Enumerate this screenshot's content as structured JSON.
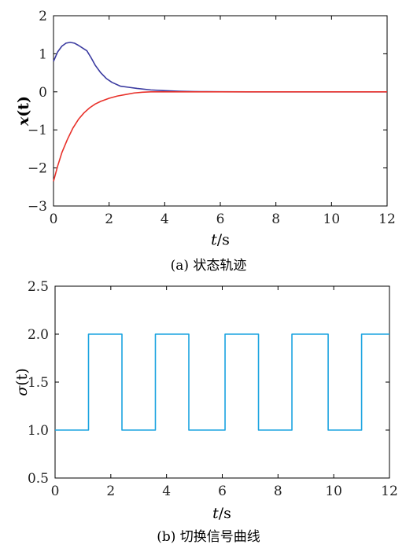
{
  "chart_data": [
    {
      "type": "line",
      "caption": "(a) 状态轨迹",
      "xlabel_var": "t",
      "xlabel_unit": "/s",
      "ylabel_var": "x",
      "ylabel_arg": "(t)",
      "xlim": [
        0,
        12
      ],
      "ylim": [
        -3,
        2
      ],
      "xticks": [
        0,
        2,
        4,
        6,
        8,
        10,
        12
      ],
      "yticks": [
        -3,
        -2,
        -1,
        0,
        1,
        2
      ],
      "grid": false,
      "series": [
        {
          "color": "#3a3aa0",
          "x": [
            0,
            0.15,
            0.3,
            0.45,
            0.6,
            0.75,
            0.9,
            1.05,
            1.2,
            1.35,
            1.5,
            1.7,
            1.9,
            2.1,
            2.4,
            2.7,
            3.0,
            3.5,
            4.0,
            4.5,
            5.0,
            5.5,
            6.0,
            7.0,
            8.0,
            10.0,
            12.0
          ],
          "y": [
            0.8,
            1.05,
            1.2,
            1.28,
            1.3,
            1.28,
            1.22,
            1.15,
            1.08,
            0.9,
            0.7,
            0.5,
            0.35,
            0.25,
            0.15,
            0.12,
            0.09,
            0.05,
            0.03,
            0.015,
            0.008,
            0.004,
            0.002,
            0,
            0,
            0,
            0
          ]
        },
        {
          "color": "#e8312a",
          "x": [
            0,
            0.15,
            0.3,
            0.5,
            0.7,
            0.9,
            1.1,
            1.3,
            1.5,
            1.7,
            2.0,
            2.3,
            2.6,
            2.9,
            3.2,
            3.5,
            4.0,
            4.5,
            5.0,
            6.0,
            8.0,
            10.0,
            12.0
          ],
          "y": [
            -2.35,
            -1.95,
            -1.6,
            -1.25,
            -0.95,
            -0.72,
            -0.55,
            -0.42,
            -0.32,
            -0.25,
            -0.17,
            -0.11,
            -0.07,
            -0.03,
            -0.01,
            0,
            0,
            0,
            0,
            0,
            0,
            0,
            0
          ]
        }
      ]
    },
    {
      "type": "line",
      "caption": "(b) 切换信号曲线",
      "xlabel_var": "t",
      "xlabel_unit": "/s",
      "ylabel_var": "σ",
      "ylabel_arg": "(t)",
      "xlim": [
        0,
        12
      ],
      "ylim": [
        0.5,
        2.5
      ],
      "xticks": [
        0,
        2,
        4,
        6,
        8,
        10,
        12
      ],
      "yticks": [
        0.5,
        1.0,
        1.5,
        2.0,
        2.5
      ],
      "ytick_labels": [
        "0.5",
        "1.0",
        "1.5",
        "2.0",
        "2.5"
      ],
      "grid": false,
      "series": [
        {
          "color": "#1aa3e0",
          "x": [
            0,
            1.2,
            1.2,
            2.4,
            2.4,
            3.6,
            3.6,
            4.8,
            4.8,
            6.1,
            6.1,
            7.3,
            7.3,
            8.5,
            8.5,
            9.8,
            9.8,
            11.0,
            11.0,
            12.0
          ],
          "y": [
            1.0,
            1.0,
            2.0,
            2.0,
            1.0,
            1.0,
            2.0,
            2.0,
            1.0,
            1.0,
            2.0,
            2.0,
            1.0,
            1.0,
            2.0,
            2.0,
            1.0,
            1.0,
            2.0,
            2.0
          ]
        }
      ]
    }
  ]
}
